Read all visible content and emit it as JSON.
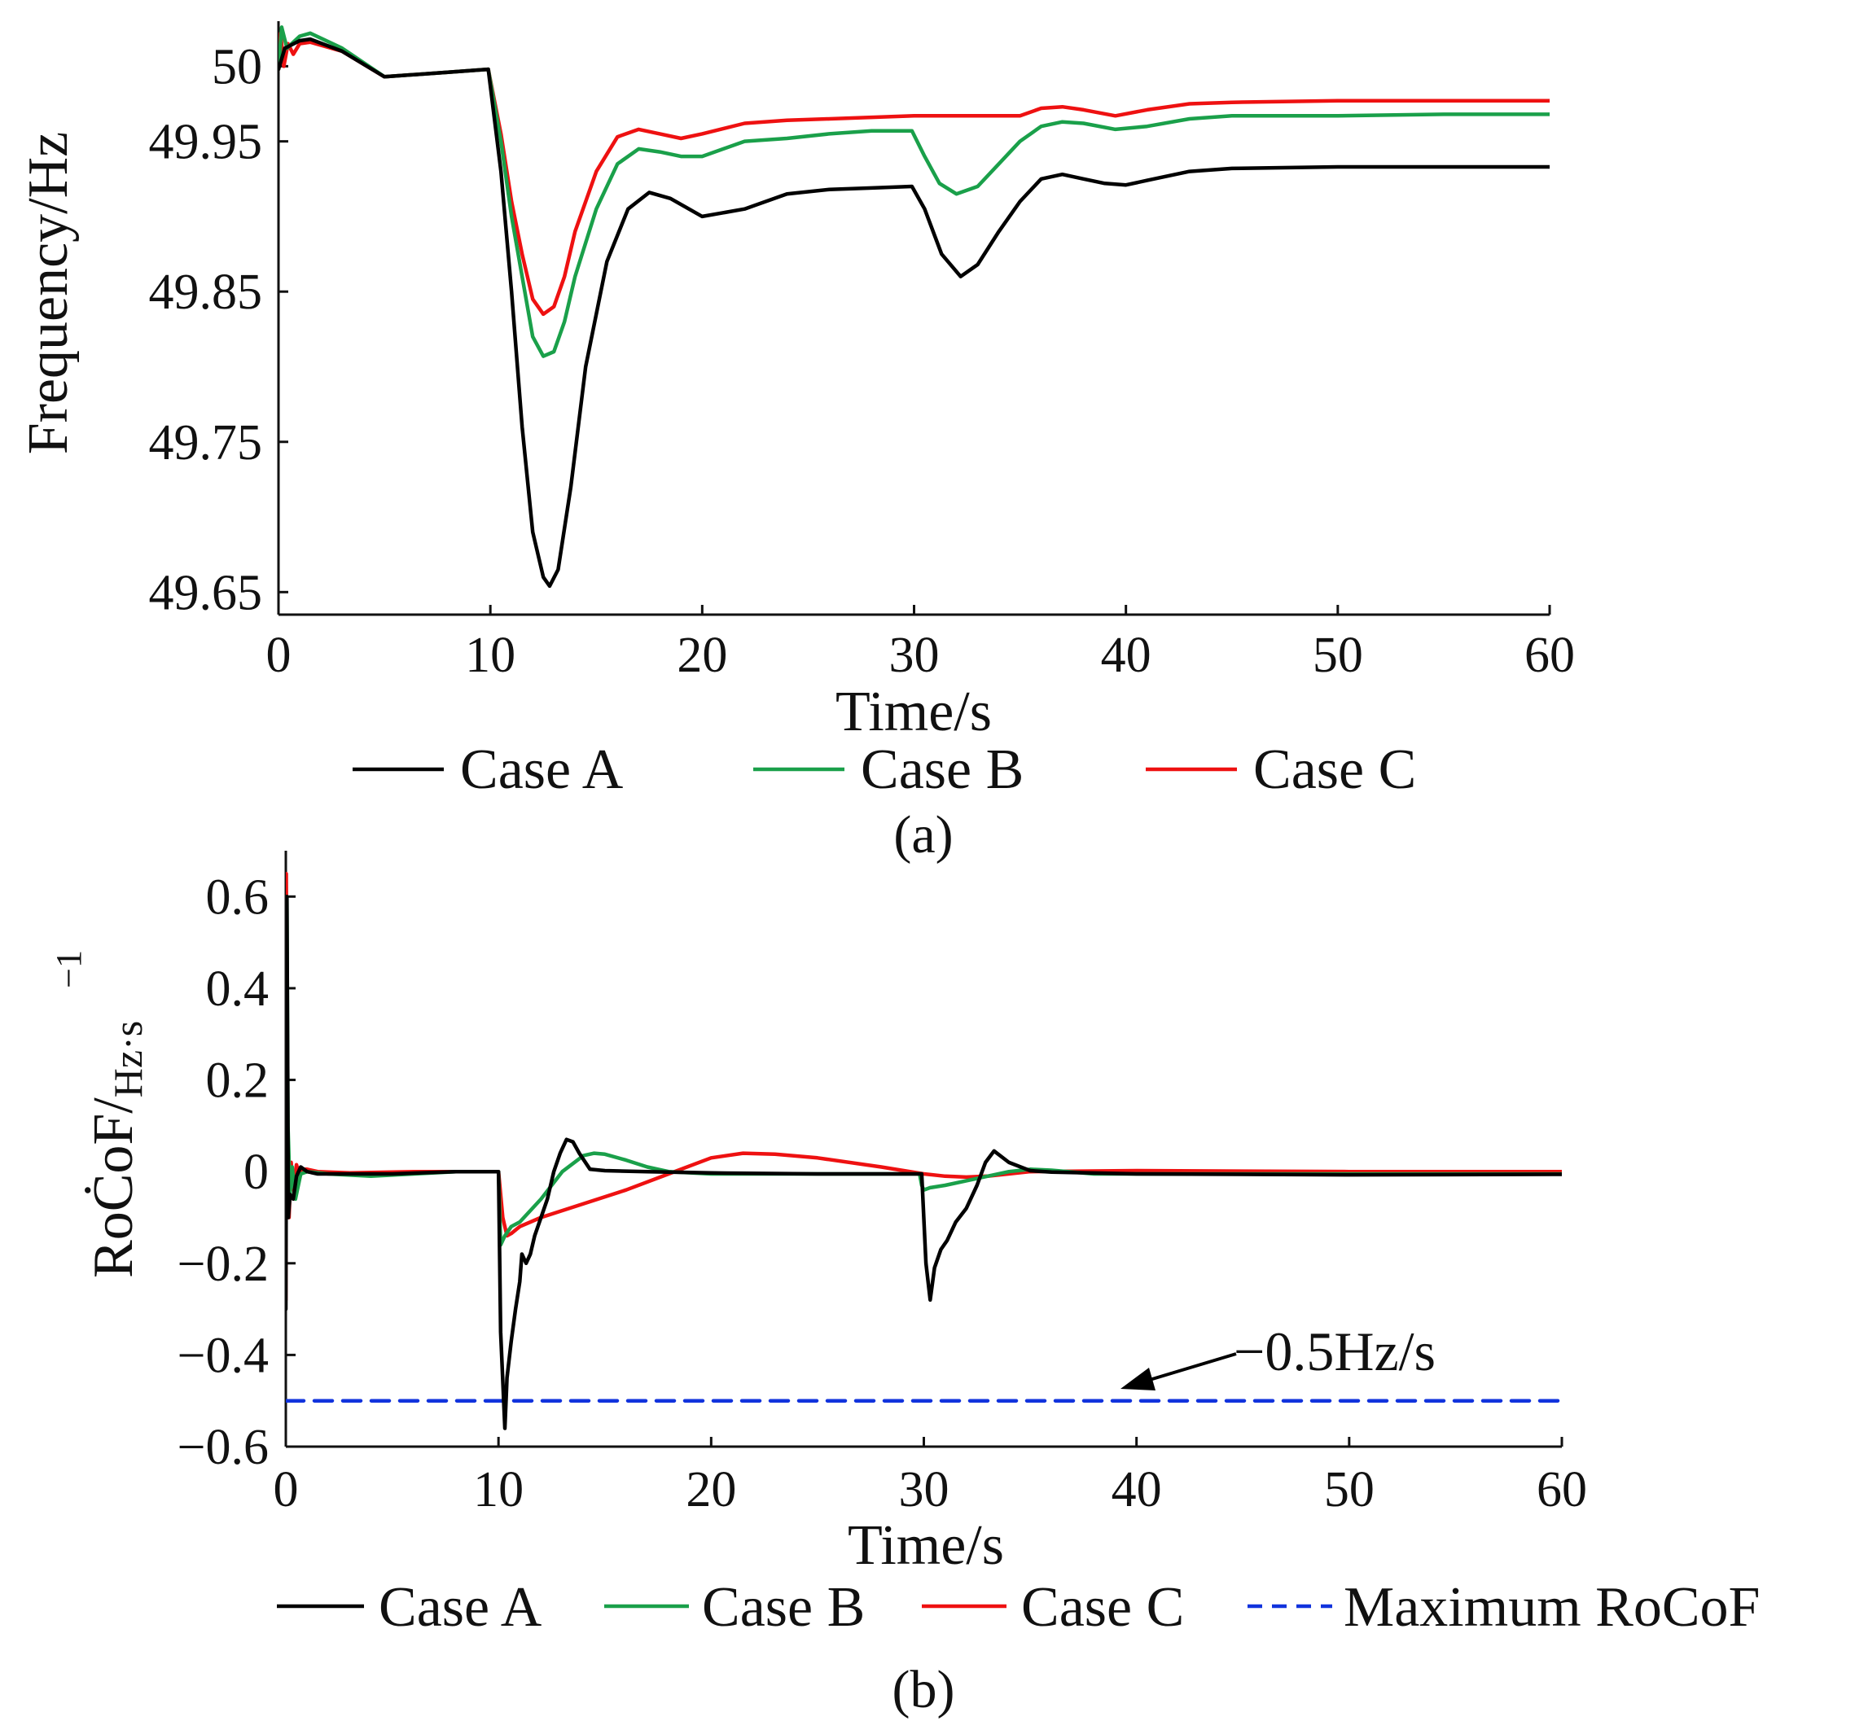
{
  "chart_data": [
    {
      "type": "line",
      "panel_label": "(a)",
      "title": "",
      "xlabel": "Time/s",
      "ylabel": "Frequency/Hz",
      "xlim": [
        0,
        60
      ],
      "ylim": [
        49.635,
        50.03
      ],
      "xticks": [
        0,
        10,
        20,
        30,
        40,
        50,
        60
      ],
      "xtick_labels": [
        "0",
        "10",
        "20",
        "30",
        "40",
        "50",
        "60"
      ],
      "yticks": [
        49.65,
        49.75,
        49.85,
        49.95,
        50.0
      ],
      "ytick_labels": [
        "49.65",
        "49.75",
        "49.85",
        "49.95",
        "50"
      ],
      "grid": false,
      "legend_position": "bottom",
      "series": [
        {
          "name": "Case A",
          "color": "#000000",
          "x": [
            0,
            0.3,
            1,
            1.5,
            3,
            5,
            8,
            9.9,
            10.5,
            11,
            11.5,
            12,
            12.5,
            12.8,
            13.2,
            13.8,
            14.5,
            15.5,
            16.5,
            17.5,
            18.5,
            20,
            22,
            24,
            26,
            28,
            29.9,
            30.5,
            31.3,
            32.2,
            33,
            34,
            35,
            36,
            37,
            38,
            39,
            40,
            41,
            43,
            45,
            50,
            55,
            60
          ],
          "values": [
            49.998,
            50.012,
            50.017,
            50.018,
            50.01,
            49.993,
            49.996,
            49.998,
            49.93,
            49.85,
            49.76,
            49.69,
            49.66,
            49.654,
            49.665,
            49.72,
            49.8,
            49.87,
            49.905,
            49.916,
            49.912,
            49.9,
            49.905,
            49.915,
            49.918,
            49.919,
            49.92,
            49.905,
            49.875,
            49.86,
            49.868,
            49.89,
            49.91,
            49.925,
            49.928,
            49.925,
            49.922,
            49.921,
            49.924,
            49.93,
            49.932,
            49.933,
            49.933,
            49.933
          ]
        },
        {
          "name": "Case B",
          "color": "#1aa04a",
          "x": [
            0,
            0.15,
            0.4,
            1,
            1.5,
            3,
            5,
            8,
            9.9,
            10.5,
            11,
            11.5,
            12,
            12.5,
            13,
            13.5,
            14,
            15,
            16,
            17,
            18,
            19,
            20,
            22,
            24,
            26,
            28,
            29.9,
            30.5,
            31.2,
            32,
            33,
            34,
            35,
            36,
            37,
            38,
            39.5,
            41,
            43,
            45,
            50,
            55,
            60
          ],
          "values": [
            49.998,
            50.026,
            50.012,
            50.02,
            50.022,
            50.012,
            49.993,
            49.996,
            49.998,
            49.95,
            49.9,
            49.86,
            49.82,
            49.807,
            49.81,
            49.83,
            49.86,
            49.905,
            49.935,
            49.945,
            49.943,
            49.94,
            49.94,
            49.95,
            49.952,
            49.955,
            49.957,
            49.957,
            49.94,
            49.922,
            49.915,
            49.92,
            49.935,
            49.95,
            49.96,
            49.963,
            49.962,
            49.958,
            49.96,
            49.965,
            49.967,
            49.967,
            49.968,
            49.968
          ]
        },
        {
          "name": "Case C",
          "color": "#ee1111",
          "x": [
            0,
            0.1,
            0.25,
            0.45,
            0.7,
            1,
            1.5,
            3,
            5,
            8,
            9.9,
            10.5,
            11,
            11.5,
            12,
            12.5,
            13,
            13.5,
            14,
            15,
            16,
            17,
            18,
            19,
            20,
            22,
            24,
            26,
            28,
            30,
            32,
            35,
            36,
            37,
            38,
            39.5,
            41,
            43,
            45,
            50,
            55,
            60
          ],
          "values": [
            49.998,
            50.022,
            50.0,
            50.015,
            50.008,
            50.015,
            50.016,
            50.01,
            49.993,
            49.996,
            49.998,
            49.955,
            49.91,
            49.875,
            49.845,
            49.835,
            49.84,
            49.86,
            49.89,
            49.93,
            49.953,
            49.958,
            49.955,
            49.952,
            49.955,
            49.962,
            49.964,
            49.965,
            49.966,
            49.967,
            49.967,
            49.967,
            49.972,
            49.973,
            49.971,
            49.967,
            49.971,
            49.975,
            49.976,
            49.977,
            49.977,
            49.977
          ]
        }
      ]
    },
    {
      "type": "line",
      "panel_label": "(b)",
      "title": "",
      "xlabel": "Time/s",
      "ylabel": "RoĊoF/",
      "ylabel_unit": "Hz·s",
      "ylabel_exponent": "−1",
      "xlim": [
        0,
        60
      ],
      "ylim": [
        -0.6,
        0.7
      ],
      "xticks": [
        0,
        10,
        20,
        30,
        40,
        50,
        60
      ],
      "xtick_labels": [
        "0",
        "10",
        "20",
        "30",
        "40",
        "50",
        "60"
      ],
      "yticks": [
        -0.6,
        -0.4,
        -0.2,
        0,
        0.2,
        0.4,
        0.6
      ],
      "ytick_labels": [
        "−0.6",
        "−0.4",
        "−0.2",
        "0",
        "0.2",
        "0.4",
        "0.6"
      ],
      "grid": false,
      "legend_position": "bottom",
      "annotation": {
        "text": "−0.5Hz/s",
        "target_x": 39,
        "target_y": -0.5
      },
      "series": [
        {
          "name": "Case A",
          "color": "#000000",
          "x": [
            0,
            0.05,
            0.12,
            0.2,
            0.35,
            0.5,
            0.7,
            1,
            1.5,
            3,
            5,
            8,
            10.0,
            10.1,
            10.3,
            10.4,
            10.6,
            10.8,
            11.0,
            11.1,
            11.3,
            11.5,
            11.7,
            12.0,
            12.3,
            12.6,
            12.9,
            13.2,
            13.5,
            13.8,
            14.3,
            15,
            17,
            20,
            25,
            29.9,
            30.1,
            30.3,
            30.5,
            30.8,
            31.1,
            31.5,
            32,
            32.5,
            32.9,
            33.3,
            34,
            35,
            36,
            40,
            50,
            60
          ],
          "values": [
            -0.3,
            0.6,
            -0.1,
            -0.05,
            -0.06,
            -0.01,
            0.01,
            0.0,
            -0.005,
            -0.005,
            -0.005,
            0.0,
            0.0,
            -0.35,
            -0.56,
            -0.45,
            -0.37,
            -0.3,
            -0.24,
            -0.18,
            -0.2,
            -0.18,
            -0.14,
            -0.1,
            -0.06,
            0.0,
            0.04,
            0.07,
            0.065,
            0.04,
            0.005,
            0.002,
            0.0,
            -0.003,
            -0.005,
            -0.005,
            -0.2,
            -0.28,
            -0.21,
            -0.17,
            -0.15,
            -0.11,
            -0.08,
            -0.03,
            0.02,
            0.045,
            0.02,
            0.002,
            -0.001,
            -0.005,
            -0.007,
            -0.006
          ]
        },
        {
          "name": "Case B",
          "color": "#1aa04a",
          "x": [
            0,
            0.05,
            0.1,
            0.2,
            0.3,
            0.45,
            0.7,
            1,
            2,
            4,
            6,
            8,
            10.0,
            10.1,
            10.3,
            10.6,
            11,
            12,
            13,
            14,
            14.5,
            15,
            16,
            17,
            18,
            20,
            25,
            29.8,
            29.9,
            30.0,
            30.3,
            31,
            32,
            33,
            34,
            35,
            36,
            38,
            40,
            50,
            60
          ],
          "values": [
            0.0,
            0.6,
            0.1,
            -0.05,
            0.01,
            -0.06,
            -0.005,
            0.0,
            -0.005,
            -0.01,
            -0.005,
            0.0,
            0.0,
            -0.16,
            -0.14,
            -0.12,
            -0.11,
            -0.06,
            0.0,
            0.035,
            0.04,
            0.038,
            0.025,
            0.01,
            0.0,
            -0.005,
            -0.005,
            -0.005,
            -0.03,
            -0.04,
            -0.035,
            -0.03,
            -0.02,
            -0.01,
            0.0,
            0.005,
            0.003,
            -0.005,
            -0.005,
            -0.005,
            -0.005
          ]
        },
        {
          "name": "Case C",
          "color": "#ee1111",
          "x": [
            0,
            0.02,
            0.08,
            0.15,
            0.25,
            0.35,
            0.5,
            0.65,
            0.8,
            1,
            1.5,
            3,
            6,
            8,
            10.0,
            10.2,
            10.4,
            10.6,
            11,
            12,
            14,
            16,
            18,
            20,
            21.5,
            23,
            25,
            28,
            30,
            31,
            32,
            33,
            35,
            40,
            50,
            60
          ],
          "values": [
            -0.28,
            0.65,
            0.1,
            -0.1,
            0.02,
            -0.04,
            0.015,
            -0.01,
            0.005,
            0.005,
            0.0,
            -0.003,
            0.0,
            0.0,
            0.0,
            -0.1,
            -0.14,
            -0.135,
            -0.12,
            -0.1,
            -0.07,
            -0.04,
            -0.005,
            0.03,
            0.04,
            0.038,
            0.03,
            0.01,
            -0.005,
            -0.01,
            -0.012,
            -0.01,
            0.0,
            0.002,
            0.0,
            0.0
          ]
        },
        {
          "name": "Maximum RoCoF",
          "color": "#1133dd",
          "dashed": true,
          "x": [
            0,
            60
          ],
          "values": [
            -0.5,
            -0.5
          ]
        }
      ]
    }
  ]
}
